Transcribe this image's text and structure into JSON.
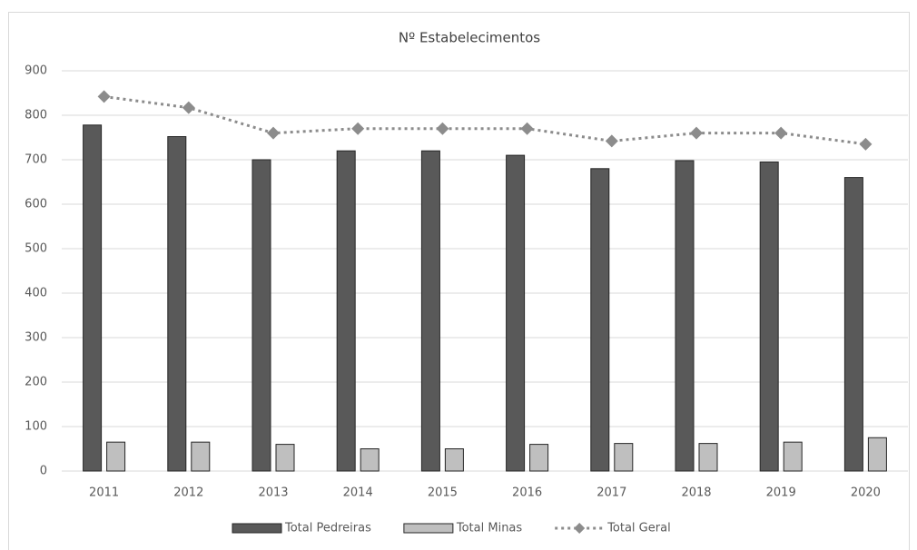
{
  "chart_data": {
    "type": "bar",
    "title": "Nº Estabelecimentos",
    "categories": [
      "2011",
      "2012",
      "2013",
      "2014",
      "2015",
      "2016",
      "2017",
      "2018",
      "2019",
      "2020"
    ],
    "series": [
      {
        "name": "Total Pedreiras",
        "type": "bar",
        "color": "#595959",
        "values": [
          778,
          752,
          700,
          720,
          720,
          710,
          680,
          698,
          695,
          660
        ]
      },
      {
        "name": "Total Minas",
        "type": "bar",
        "color": "#bfbfbf",
        "values": [
          65,
          65,
          60,
          50,
          50,
          60,
          62,
          62,
          65,
          75
        ]
      },
      {
        "name": "Total Geral",
        "type": "line",
        "color": "#8c8c8c",
        "values": [
          842,
          817,
          760,
          770,
          770,
          770,
          742,
          760,
          760,
          735
        ]
      }
    ],
    "ylim": [
      0,
      900
    ],
    "yticks": [
      0,
      100,
      200,
      300,
      400,
      500,
      600,
      700,
      800,
      900
    ],
    "grid": true,
    "legend": "bottom"
  }
}
